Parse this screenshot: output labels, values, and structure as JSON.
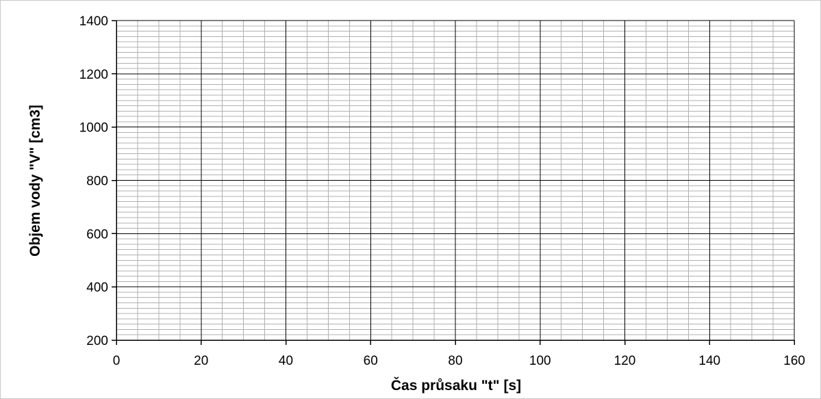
{
  "chart_data": {
    "type": "scatter",
    "title": "",
    "xlabel": "Čas průsaku \"t\" [s]",
    "ylabel": "Objem vody \"V\" [cm3]",
    "xlim": [
      0,
      160
    ],
    "ylim": [
      200,
      1400
    ],
    "x_ticks": [
      "0",
      "20",
      "40",
      "60",
      "80",
      "100",
      "120",
      "140",
      "160"
    ],
    "y_ticks": [
      "200",
      "400",
      "600",
      "800",
      "1000",
      "1200",
      "1400"
    ],
    "x_major_step": 20,
    "x_minor_step": 5,
    "y_major_step": 200,
    "y_minor_step": 20,
    "grid": true,
    "series": [],
    "colors": {
      "major_grid": "#000000",
      "minor_grid": "#b0b0b0",
      "border": "#c8c8c8"
    }
  }
}
